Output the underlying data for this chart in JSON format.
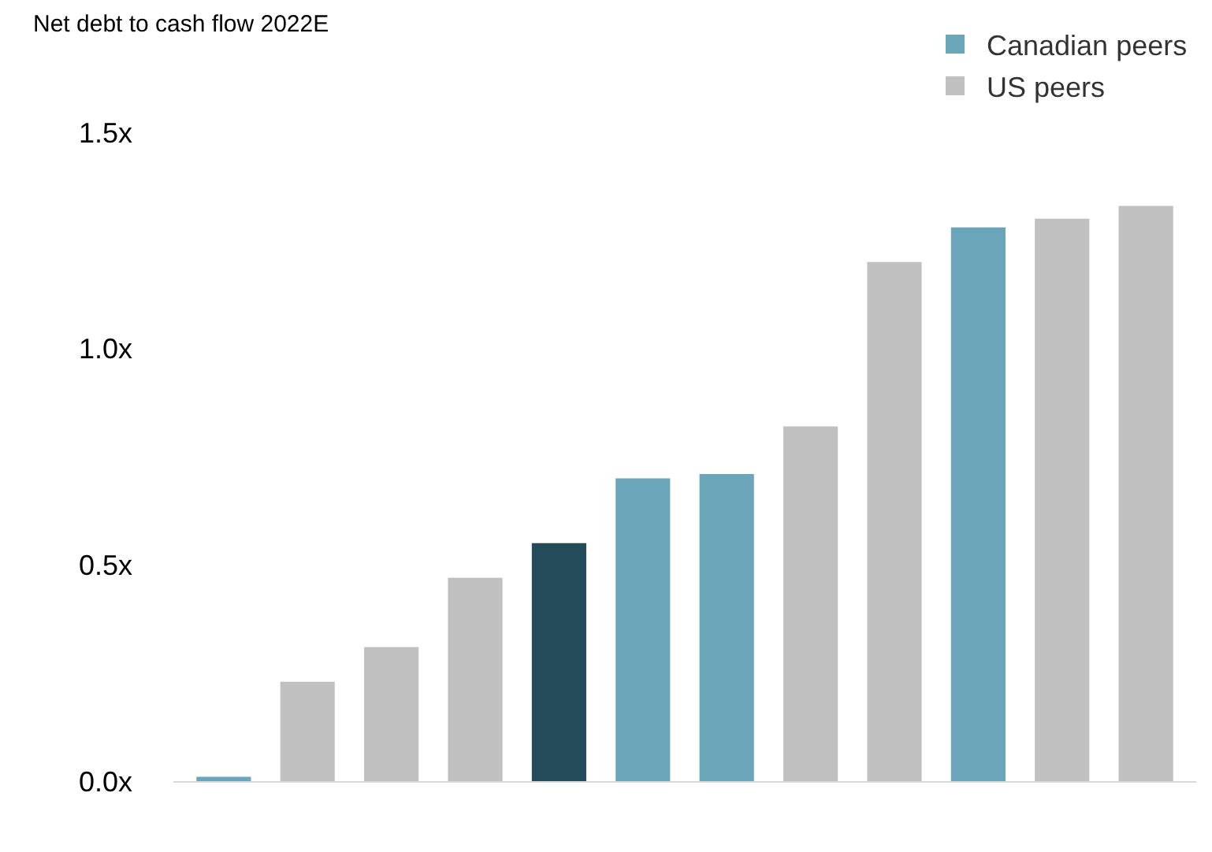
{
  "chart_data": {
    "type": "bar",
    "ylabel": "Net debt to cash flow 2022E",
    "categories": [
      null,
      null,
      null,
      null,
      null,
      null,
      null,
      null,
      null,
      null,
      null,
      null
    ],
    "series": [
      {
        "name": "Canadian peers",
        "color": "#6aa5ba",
        "values": [
          0.01,
          null,
          null,
          null,
          null,
          0.7,
          0.71,
          null,
          null,
          1.28,
          null,
          null
        ]
      },
      {
        "name": "US peers",
        "color": "#c0c0c0",
        "values": [
          null,
          0.23,
          0.31,
          0.47,
          null,
          null,
          null,
          0.82,
          1.2,
          null,
          1.3,
          1.33
        ]
      },
      {
        "color": "#234b5a",
        "values": [
          null,
          null,
          null,
          null,
          0.55,
          null,
          null,
          null,
          null,
          null,
          null,
          null
        ]
      }
    ],
    "ylim": [
      0,
      1.5
    ],
    "yticks": [
      {
        "value": 0,
        "label": "0.0x"
      },
      {
        "value": 0.5,
        "label": "0.5x"
      },
      {
        "value": 1.0,
        "label": "1.0x"
      },
      {
        "value": 1.5,
        "label": "1.5x"
      }
    ],
    "legend": "top right"
  }
}
